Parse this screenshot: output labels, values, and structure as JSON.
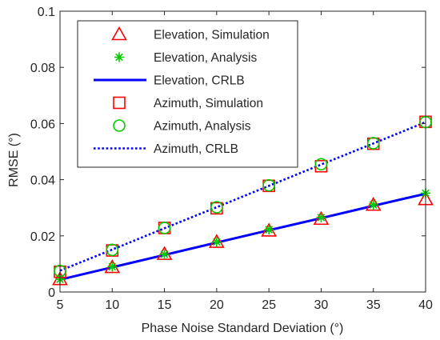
{
  "chart_data": {
    "type": "line",
    "xlabel": "Phase Noise Standard Deviation (°)",
    "ylabel": "RMSE (°)",
    "xlim": [
      5,
      40
    ],
    "ylim": [
      0,
      0.1
    ],
    "xticks": [
      5,
      10,
      15,
      20,
      25,
      30,
      35,
      40
    ],
    "yticks": [
      0,
      0.02,
      0.04,
      0.06,
      0.08,
      0.1
    ],
    "xtick_labels": [
      "5",
      "10",
      "15",
      "20",
      "25",
      "30",
      "35",
      "40"
    ],
    "ytick_labels": [
      "0",
      "0.02",
      "0.04",
      "0.06",
      "0.08",
      "0.1"
    ],
    "grid": false,
    "legend_position": "top-left",
    "x": [
      5,
      10,
      15,
      20,
      25,
      30,
      35,
      40
    ],
    "series": [
      {
        "name": "Elevation, Simulation",
        "marker": "triangle",
        "line": "none",
        "color": "#ff0000",
        "values": [
          0.0045,
          0.0088,
          0.0135,
          0.0178,
          0.0218,
          0.026,
          0.031,
          0.033
        ]
      },
      {
        "name": "Elevation, Analysis",
        "marker": "asterisk",
        "line": "none",
        "color": "#00cc00",
        "values": [
          0.0045,
          0.009,
          0.0134,
          0.0178,
          0.0222,
          0.0265,
          0.031,
          0.0352
        ]
      },
      {
        "name": "Elevation, CRLB",
        "marker": "none",
        "line": "solid",
        "color": "#0000ff",
        "values": [
          0.0044,
          0.0088,
          0.0132,
          0.0176,
          0.022,
          0.0263,
          0.0307,
          0.035
        ]
      },
      {
        "name": "Azimuth, Simulation",
        "marker": "square",
        "line": "none",
        "color": "#ff0000",
        "values": [
          0.0072,
          0.0148,
          0.0228,
          0.0298,
          0.0378,
          0.0448,
          0.0528,
          0.0606
        ]
      },
      {
        "name": "Azimuth, Analysis",
        "marker": "circle",
        "line": "none",
        "color": "#00cc00",
        "values": [
          0.0075,
          0.015,
          0.0228,
          0.0302,
          0.038,
          0.0455,
          0.053,
          0.0605
        ]
      },
      {
        "name": "Azimuth, CRLB",
        "marker": "none",
        "line": "dotted",
        "color": "#0000ff",
        "values": [
          0.0076,
          0.0151,
          0.0227,
          0.0302,
          0.0378,
          0.0454,
          0.0529,
          0.0605
        ]
      }
    ]
  }
}
